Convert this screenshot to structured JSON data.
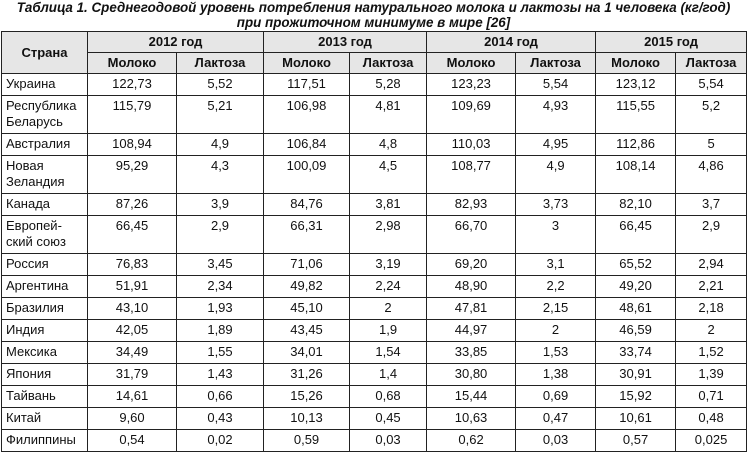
{
  "caption": {
    "line1": "Таблица 1. Среднегодовой уровень потребления натурального молока и лактозы на 1 человека (кг/год)",
    "line2": "при прожиточном минимуме в мире [26]"
  },
  "header": {
    "country": "Страна",
    "years": [
      "2012 год",
      "2013 год",
      "2014 год",
      "2015 год"
    ],
    "milk": "Молоко",
    "lactose": "Лактоза"
  },
  "rows": [
    {
      "country": "Украина",
      "v": [
        "122,73",
        "5,52",
        "117,51",
        "5,28",
        "123,23",
        "5,54",
        "123,12",
        "5,54"
      ]
    },
    {
      "country": "Республика Беларусь",
      "v": [
        "115,79",
        "5,21",
        "106,98",
        "4,81",
        "109,69",
        "4,93",
        "115,55",
        "5,2"
      ]
    },
    {
      "country": "Австралия",
      "v": [
        "108,94",
        "4,9",
        "106,84",
        "4,8",
        "110,03",
        "4,95",
        "112,86",
        "5"
      ]
    },
    {
      "country": "Новая Зеландия",
      "v": [
        "95,29",
        "4,3",
        "100,09",
        "4,5",
        "108,77",
        "4,9",
        "108,14",
        "4,86"
      ]
    },
    {
      "country": "Канада",
      "v": [
        "87,26",
        "3,9",
        "84,76",
        "3,81",
        "82,93",
        "3,73",
        "82,10",
        "3,7"
      ]
    },
    {
      "country": "Европей-ский союз",
      "v": [
        "66,45",
        "2,9",
        "66,31",
        "2,98",
        "66,70",
        "3",
        "66,45",
        "2,9"
      ]
    },
    {
      "country": "Россия",
      "v": [
        "76,83",
        "3,45",
        "71,06",
        "3,19",
        "69,20",
        "3,1",
        "65,52",
        "2,94"
      ]
    },
    {
      "country": "Аргентина",
      "v": [
        "51,91",
        "2,34",
        "49,82",
        "2,24",
        "48,90",
        "2,2",
        "49,20",
        "2,21"
      ]
    },
    {
      "country": "Бразилия",
      "v": [
        "43,10",
        "1,93",
        "45,10",
        "2",
        "47,81",
        "2,15",
        "48,61",
        "2,18"
      ]
    },
    {
      "country": "Индия",
      "v": [
        "42,05",
        "1,89",
        "43,45",
        "1,9",
        "44,97",
        "2",
        "46,59",
        "2"
      ]
    },
    {
      "country": "Мексика",
      "v": [
        "34,49",
        "1,55",
        "34,01",
        "1,54",
        "33,85",
        "1,53",
        "33,74",
        "1,52"
      ]
    },
    {
      "country": "Япония",
      "v": [
        "31,79",
        "1,43",
        "31,26",
        "1,4",
        "30,80",
        "1,38",
        "30,91",
        "1,39"
      ]
    },
    {
      "country": "Тайвань",
      "v": [
        "14,61",
        "0,66",
        "15,26",
        "0,68",
        "15,44",
        "0,69",
        "15,92",
        "0,71"
      ]
    },
    {
      "country": "Китай",
      "v": [
        "9,60",
        "0,43",
        "10,13",
        "0,45",
        "10,63",
        "0,47",
        "10,61",
        "0,48"
      ]
    },
    {
      "country": "Филиппины",
      "v": [
        "0,54",
        "0,02",
        "0,59",
        "0,03",
        "0,62",
        "0,03",
        "0,57",
        "0,025"
      ]
    }
  ]
}
